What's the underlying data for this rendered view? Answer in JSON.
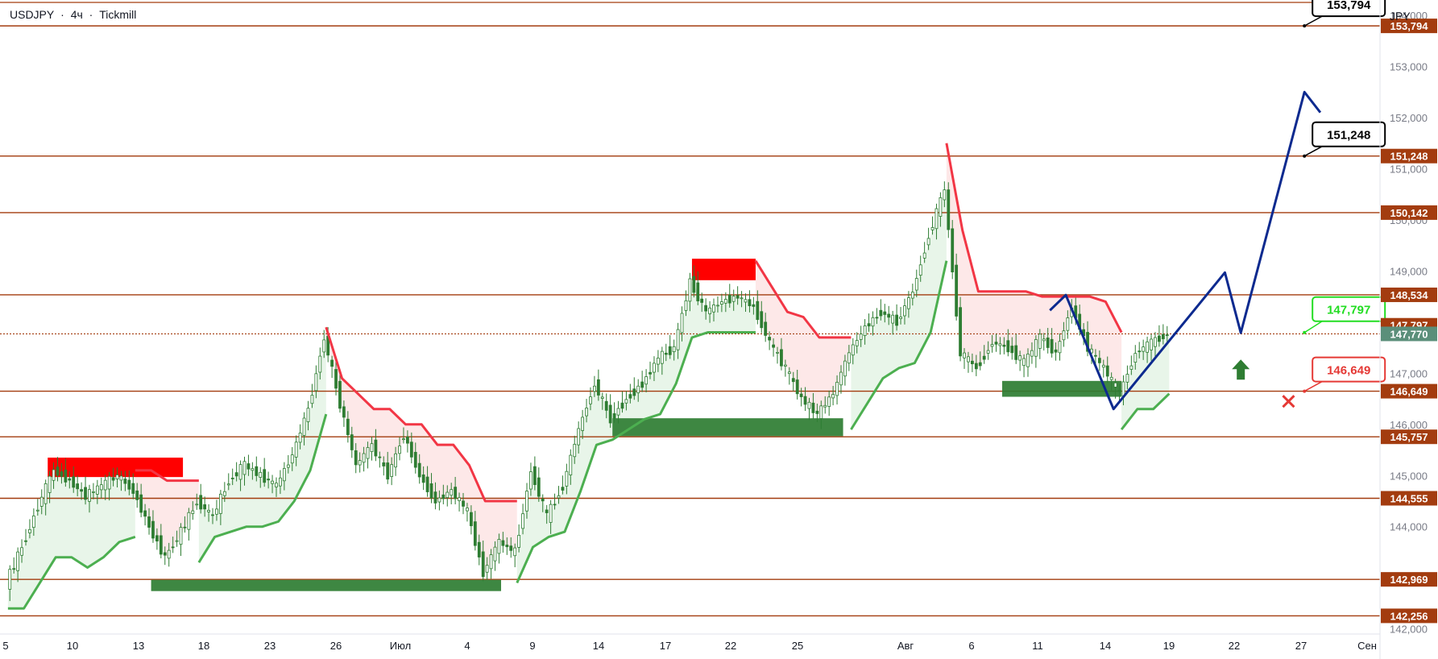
{
  "header": {
    "symbol": "USDJPY",
    "sep1": "·",
    "timeframe": "4ч",
    "sep2": "·",
    "broker": "Tickmill"
  },
  "axis_unit": "JPY",
  "colors": {
    "level_line": "#a33c0f",
    "level_badge": "#a33c0f",
    "current_badge": "#5b8f7a",
    "candle": "#2e7d32",
    "bull": "#4caf50",
    "bear": "#f23645",
    "bull_fill": "#e8f5e9",
    "bear_fill": "#fde8e8",
    "supply_zone": "#ff0000",
    "demand_zone": "#2e7d32",
    "projection": "#0d2a8f",
    "arrow_up": "#2e7d32",
    "cross": "#e53935"
  },
  "chart_data": {
    "type": "line",
    "instrument": "USDJPY",
    "timeframe": "4ч",
    "ylim": [
      141.9,
      154.3
    ],
    "y_ticks": [
      "142,000",
      "143,000",
      "144,000",
      "145,000",
      "146,000",
      "147,000",
      "148,000",
      "149,000",
      "150,000",
      "151,000",
      "152,000",
      "153,000",
      "154,000"
    ],
    "x_ticks": [
      "5",
      "10",
      "13",
      "18",
      "23",
      "26",
      "Июл",
      "4",
      "9",
      "14",
      "17",
      "22",
      "25",
      "Авг",
      "6",
      "11",
      "14",
      "19",
      "22",
      "27",
      "Сен"
    ],
    "levels": [
      {
        "value": 153.794,
        "label": "153,794"
      },
      {
        "value": 151.248,
        "label": "151,248"
      },
      {
        "value": 150.142,
        "label": "150,142"
      },
      {
        "value": 148.534,
        "label": "148,534"
      },
      {
        "value": 146.649,
        "label": "146,649"
      },
      {
        "value": 145.757,
        "label": "145,757"
      },
      {
        "value": 144.555,
        "label": "144,555"
      },
      {
        "value": 142.969,
        "label": "142,969"
      },
      {
        "value": 142.256,
        "label": "142,256"
      }
    ],
    "current_price": {
      "value": 147.77,
      "label": "147,770"
    },
    "entry_level": {
      "value": 147.797,
      "label": "147,797"
    },
    "callouts": [
      {
        "label": "153,794",
        "value": 153.794,
        "style": "target"
      },
      {
        "label": "151,248",
        "value": 151.248,
        "style": "target"
      },
      {
        "label": "147,797",
        "value": 147.797,
        "style": "entry"
      },
      {
        "label": "146,649",
        "value": 146.649,
        "style": "stop"
      }
    ],
    "price_path": [
      [
        0,
        142.9
      ],
      [
        1,
        143.6
      ],
      [
        2,
        144.4
      ],
      [
        3,
        145.1
      ],
      [
        4,
        144.9
      ],
      [
        5,
        144.6
      ],
      [
        6,
        144.8
      ],
      [
        7,
        145.0
      ],
      [
        8,
        144.7
      ],
      [
        9,
        144.0
      ],
      [
        10,
        143.4
      ],
      [
        11,
        143.9
      ],
      [
        12,
        144.5
      ],
      [
        13,
        144.2
      ],
      [
        14,
        144.9
      ],
      [
        15,
        145.2
      ],
      [
        16,
        145.0
      ],
      [
        17,
        144.8
      ],
      [
        18,
        145.4
      ],
      [
        19,
        146.3
      ],
      [
        20,
        147.7
      ],
      [
        21,
        146.4
      ],
      [
        22,
        145.2
      ],
      [
        23,
        145.6
      ],
      [
        24,
        145.0
      ],
      [
        25,
        145.8
      ],
      [
        26,
        145.0
      ],
      [
        27,
        144.5
      ],
      [
        28,
        144.7
      ],
      [
        29,
        144.3
      ],
      [
        30,
        143.1
      ],
      [
        31,
        143.7
      ],
      [
        32,
        143.5
      ],
      [
        33,
        145.1
      ],
      [
        34,
        144.2
      ],
      [
        35,
        144.8
      ],
      [
        36,
        145.9
      ],
      [
        37,
        146.8
      ],
      [
        38,
        146.1
      ],
      [
        39,
        146.5
      ],
      [
        40,
        146.8
      ],
      [
        41,
        147.3
      ],
      [
        42,
        147.5
      ],
      [
        43,
        148.8
      ],
      [
        44,
        148.2
      ],
      [
        45,
        148.4
      ],
      [
        46,
        148.5
      ],
      [
        47,
        148.3
      ],
      [
        48,
        147.6
      ],
      [
        49,
        147.1
      ],
      [
        50,
        146.5
      ],
      [
        51,
        146.2
      ],
      [
        52,
        146.6
      ],
      [
        53,
        147.4
      ],
      [
        54,
        147.9
      ],
      [
        55,
        148.2
      ],
      [
        56,
        148.0
      ],
      [
        57,
        148.6
      ],
      [
        58,
        149.7
      ],
      [
        59,
        150.6
      ],
      [
        60,
        147.4
      ],
      [
        61,
        147.1
      ],
      [
        62,
        147.6
      ],
      [
        63,
        147.5
      ],
      [
        64,
        147.2
      ],
      [
        65,
        147.7
      ],
      [
        66,
        147.4
      ],
      [
        67,
        148.3
      ],
      [
        68,
        147.5
      ],
      [
        69,
        147.1
      ],
      [
        70,
        146.6
      ],
      [
        71,
        147.4
      ],
      [
        72,
        147.6
      ],
      [
        73,
        147.77
      ]
    ],
    "supertrend": [
      {
        "trend": "up",
        "points": [
          [
            0,
            142.4
          ],
          [
            1,
            142.4
          ],
          [
            2,
            142.9
          ],
          [
            3,
            143.4
          ],
          [
            4,
            143.4
          ],
          [
            5,
            143.2
          ],
          [
            6,
            143.4
          ],
          [
            7,
            143.7
          ],
          [
            8,
            143.8
          ]
        ]
      },
      {
        "trend": "down",
        "points": [
          [
            8,
            145.1
          ],
          [
            9,
            145.1
          ],
          [
            10,
            144.9
          ],
          [
            11,
            144.9
          ],
          [
            12,
            144.9
          ]
        ]
      },
      {
        "trend": "up",
        "points": [
          [
            12,
            143.3
          ],
          [
            13,
            143.8
          ],
          [
            14,
            143.9
          ],
          [
            15,
            144.0
          ],
          [
            16,
            144.0
          ],
          [
            17,
            144.1
          ],
          [
            18,
            144.5
          ],
          [
            19,
            145.1
          ],
          [
            20,
            146.2
          ]
        ]
      },
      {
        "trend": "down",
        "points": [
          [
            20,
            147.9
          ],
          [
            21,
            146.9
          ],
          [
            22,
            146.6
          ],
          [
            23,
            146.3
          ],
          [
            24,
            146.3
          ],
          [
            25,
            146.0
          ],
          [
            26,
            146.0
          ],
          [
            27,
            145.6
          ],
          [
            28,
            145.6
          ],
          [
            29,
            145.2
          ],
          [
            30,
            144.5
          ],
          [
            31,
            144.5
          ],
          [
            32,
            144.5
          ]
        ]
      },
      {
        "trend": "up",
        "points": [
          [
            32,
            142.9
          ],
          [
            33,
            143.6
          ],
          [
            34,
            143.8
          ],
          [
            35,
            143.9
          ],
          [
            36,
            144.7
          ],
          [
            37,
            145.6
          ],
          [
            38,
            145.7
          ],
          [
            39,
            145.9
          ],
          [
            40,
            146.1
          ],
          [
            41,
            146.2
          ],
          [
            42,
            146.8
          ],
          [
            43,
            147.7
          ],
          [
            44,
            147.8
          ],
          [
            45,
            147.8
          ],
          [
            46,
            147.8
          ],
          [
            47,
            147.8
          ]
        ]
      },
      {
        "trend": "down",
        "points": [
          [
            47,
            149.2
          ],
          [
            48,
            148.7
          ],
          [
            49,
            148.2
          ],
          [
            50,
            148.1
          ],
          [
            51,
            147.7
          ],
          [
            52,
            147.7
          ],
          [
            53,
            147.7
          ]
        ]
      },
      {
        "trend": "up",
        "points": [
          [
            53,
            145.9
          ],
          [
            54,
            146.4
          ],
          [
            55,
            146.9
          ],
          [
            56,
            147.1
          ],
          [
            57,
            147.2
          ],
          [
            58,
            147.8
          ],
          [
            59,
            149.2
          ]
        ]
      },
      {
        "trend": "down",
        "points": [
          [
            59,
            151.5
          ],
          [
            60,
            149.8
          ],
          [
            61,
            148.6
          ],
          [
            62,
            148.6
          ],
          [
            63,
            148.6
          ],
          [
            64,
            148.6
          ],
          [
            65,
            148.5
          ],
          [
            66,
            148.5
          ],
          [
            67,
            148.5
          ],
          [
            68,
            148.5
          ],
          [
            69,
            148.4
          ],
          [
            70,
            147.8
          ]
        ]
      },
      {
        "trend": "up",
        "points": [
          [
            70,
            145.9
          ],
          [
            71,
            146.3
          ],
          [
            72,
            146.3
          ],
          [
            73,
            146.6
          ]
        ]
      }
    ],
    "supply_zones": [
      {
        "from": 2.5,
        "to": 11,
        "low": 144.97,
        "high": 145.35
      },
      {
        "from": 43,
        "to": 47,
        "low": 148.82,
        "high": 149.24
      }
    ],
    "demand_zones": [
      {
        "from": 9,
        "to": 31,
        "low": 142.74,
        "high": 142.96
      },
      {
        "from": 38,
        "to": 52.5,
        "low": 145.77,
        "high": 146.12
      },
      {
        "from": 62.5,
        "to": 70,
        "low": 146.54,
        "high": 146.85
      }
    ],
    "projection": [
      [
        65.5,
        148.23
      ],
      [
        66.5,
        148.53
      ],
      [
        69.5,
        146.3
      ],
      [
        76.5,
        148.97
      ],
      [
        77.5,
        147.79
      ],
      [
        81.5,
        152.5
      ],
      [
        82.5,
        152.1
      ]
    ],
    "buy_arrow": {
      "x": 77.5,
      "value": 147.08
    },
    "stop_cross": {
      "x": 80.5,
      "value": 146.45
    },
    "x_range": [
      -0.5,
      86.2
    ]
  }
}
